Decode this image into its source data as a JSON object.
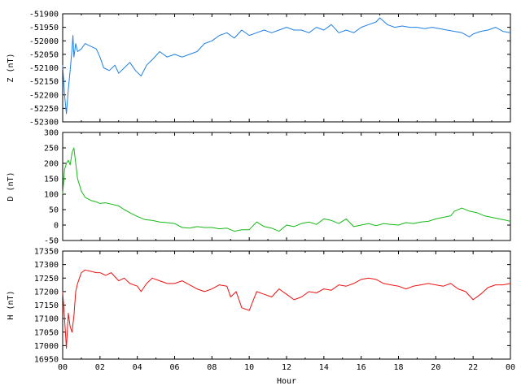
{
  "chart_data": [
    {
      "type": "line",
      "ylabel": "Z (nT)",
      "ylim": [
        -52300,
        -51900
      ],
      "yticks": [
        -51900,
        -51950,
        -52000,
        -52050,
        -52100,
        -52150,
        -52200,
        -52250,
        -52300
      ],
      "xlim": [
        0,
        24
      ],
      "color": "#1f7fe0",
      "series": [
        {
          "x": [
            0,
            0.1,
            0.2,
            0.3,
            0.4,
            0.5,
            0.55,
            0.6,
            0.7,
            0.8,
            1.0,
            1.2,
            1.5,
            1.8,
            2.0,
            2.2,
            2.5,
            2.8,
            3.0,
            3.3,
            3.6,
            3.9,
            4.2,
            4.5,
            4.8,
            5.2,
            5.6,
            6.0,
            6.4,
            6.8,
            7.2,
            7.6,
            8.0,
            8.4,
            8.8,
            9.2,
            9.6,
            10.0,
            10.4,
            10.8,
            11.2,
            11.6,
            12.0,
            12.4,
            12.8,
            13.2,
            13.6,
            14.0,
            14.4,
            14.8,
            15.2,
            15.6,
            16.0,
            16.4,
            16.8,
            17.0,
            17.4,
            17.8,
            18.2,
            18.6,
            19.0,
            19.4,
            19.8,
            20.2,
            20.6,
            21.0,
            21.4,
            21.8,
            22.0,
            22.4,
            22.8,
            23.2,
            23.6,
            24.0
          ],
          "y": [
            -52090,
            -52200,
            -52270,
            -52180,
            -52110,
            -52030,
            -51980,
            -52060,
            -52010,
            -52040,
            -52030,
            -52010,
            -52020,
            -52030,
            -52060,
            -52100,
            -52110,
            -52090,
            -52120,
            -52100,
            -52080,
            -52110,
            -52130,
            -52090,
            -52070,
            -52040,
            -52060,
            -52050,
            -52060,
            -52050,
            -52040,
            -52010,
            -52000,
            -51980,
            -51970,
            -51990,
            -51960,
            -51980,
            -51970,
            -51960,
            -51970,
            -51960,
            -51950,
            -51960,
            -51960,
            -51970,
            -51950,
            -51960,
            -51940,
            -51970,
            -51960,
            -51970,
            -51950,
            -51940,
            -51930,
            -51915,
            -51940,
            -51950,
            -51945,
            -51950,
            -51950,
            -51955,
            -51950,
            -51955,
            -51960,
            -51965,
            -51970,
            -51985,
            -51975,
            -51965,
            -51960,
            -51950,
            -51965,
            -51970
          ]
        }
      ]
    },
    {
      "type": "line",
      "ylabel": "D (nT)",
      "ylim": [
        -50,
        300
      ],
      "yticks": [
        300,
        250,
        200,
        150,
        100,
        50,
        0,
        -50
      ],
      "xlim": [
        0,
        24
      ],
      "color": "#16b816",
      "series": [
        {
          "x": [
            0,
            0.1,
            0.2,
            0.3,
            0.4,
            0.5,
            0.6,
            0.7,
            0.8,
            1.0,
            1.2,
            1.5,
            1.8,
            2.0,
            2.3,
            2.6,
            3.0,
            3.3,
            3.6,
            4.0,
            4.4,
            4.8,
            5.2,
            5.6,
            6.0,
            6.4,
            6.8,
            7.2,
            7.6,
            8.0,
            8.4,
            8.8,
            9.2,
            9.6,
            10.0,
            10.4,
            10.8,
            11.2,
            11.6,
            12.0,
            12.4,
            12.8,
            13.2,
            13.6,
            14.0,
            14.4,
            14.8,
            15.2,
            15.6,
            16.0,
            16.4,
            16.8,
            17.2,
            17.6,
            18.0,
            18.4,
            18.8,
            19.2,
            19.6,
            20.0,
            20.4,
            20.8,
            21.0,
            21.4,
            21.8,
            22.2,
            22.6,
            23.0,
            23.4,
            23.8,
            24.0
          ],
          "y": [
            100,
            180,
            200,
            210,
            195,
            235,
            250,
            200,
            150,
            110,
            90,
            80,
            75,
            70,
            72,
            68,
            62,
            50,
            40,
            28,
            18,
            15,
            10,
            8,
            5,
            -8,
            -10,
            -5,
            -8,
            -8,
            -12,
            -10,
            -20,
            -15,
            -15,
            10,
            -5,
            -10,
            -20,
            0,
            -5,
            5,
            10,
            2,
            20,
            15,
            5,
            20,
            -5,
            0,
            5,
            -2,
            5,
            2,
            0,
            8,
            5,
            10,
            12,
            20,
            25,
            30,
            45,
            55,
            45,
            40,
            30,
            25,
            20,
            15,
            12
          ]
        }
      ]
    },
    {
      "type": "line",
      "ylabel": "H (nT)",
      "ylim": [
        16950,
        17350
      ],
      "yticks": [
        17350,
        17300,
        17250,
        17200,
        17150,
        17100,
        17050,
        17000,
        16950
      ],
      "xlim": [
        0,
        24
      ],
      "xlabel": "Hour",
      "xtick_labels": [
        "00",
        "02",
        "04",
        "06",
        "08",
        "10",
        "12",
        "14",
        "16",
        "18",
        "20",
        "22",
        "00"
      ],
      "color": "#ee1111",
      "series": [
        {
          "x": [
            0,
            0.1,
            0.2,
            0.3,
            0.4,
            0.5,
            0.6,
            0.7,
            0.8,
            1.0,
            1.2,
            1.5,
            1.8,
            2.0,
            2.3,
            2.6,
            3.0,
            3.3,
            3.6,
            4.0,
            4.2,
            4.5,
            4.8,
            5.2,
            5.6,
            6.0,
            6.4,
            6.8,
            7.2,
            7.6,
            8.0,
            8.4,
            8.8,
            9.0,
            9.3,
            9.6,
            10.0,
            10.4,
            10.8,
            11.2,
            11.6,
            12.0,
            12.4,
            12.8,
            13.2,
            13.6,
            14.0,
            14.4,
            14.8,
            15.2,
            15.6,
            16.0,
            16.4,
            16.8,
            17.2,
            17.6,
            18.0,
            18.4,
            18.8,
            19.2,
            19.6,
            20.0,
            20.4,
            20.8,
            21.2,
            21.6,
            22.0,
            22.4,
            22.8,
            23.2,
            23.6,
            24.0
          ],
          "y": [
            17200,
            17100,
            16990,
            17120,
            17070,
            17050,
            17110,
            17200,
            17230,
            17270,
            17280,
            17275,
            17270,
            17270,
            17260,
            17270,
            17240,
            17250,
            17230,
            17220,
            17200,
            17230,
            17250,
            17240,
            17230,
            17230,
            17240,
            17225,
            17210,
            17200,
            17210,
            17225,
            17220,
            17180,
            17200,
            17140,
            17130,
            17200,
            17190,
            17180,
            17210,
            17190,
            17170,
            17180,
            17200,
            17195,
            17210,
            17205,
            17225,
            17220,
            17230,
            17245,
            17250,
            17245,
            17230,
            17225,
            17220,
            17210,
            17220,
            17225,
            17230,
            17225,
            17220,
            17230,
            17210,
            17200,
            17170,
            17190,
            17215,
            17225,
            17225,
            17230
          ]
        }
      ]
    }
  ]
}
